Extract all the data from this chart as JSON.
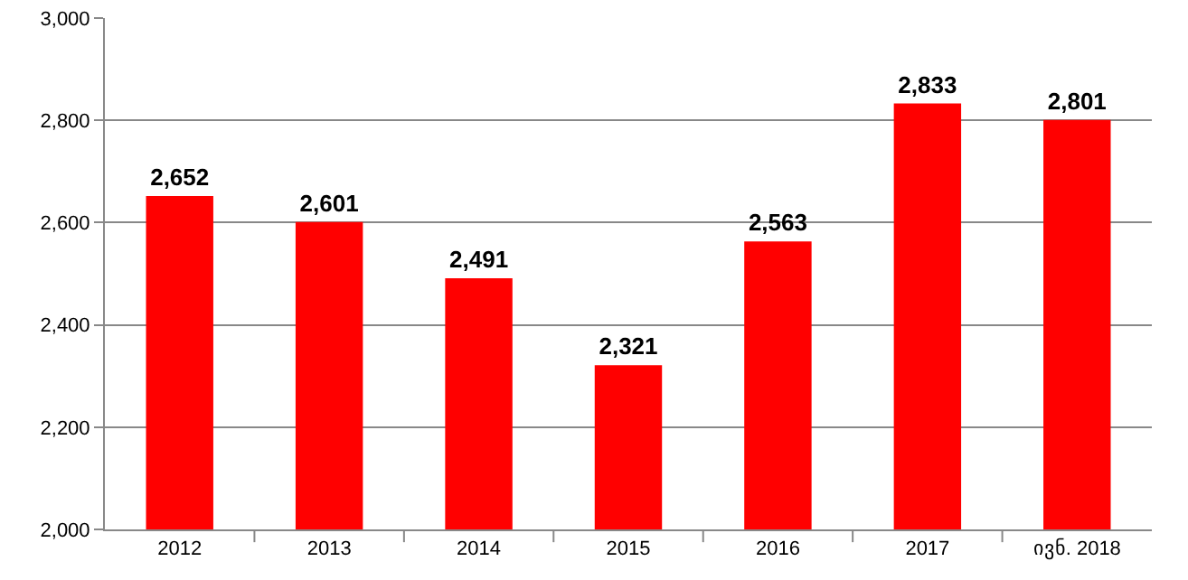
{
  "chart_data": {
    "type": "bar",
    "categories": [
      "2012",
      "2013",
      "2014",
      "2015",
      "2016",
      "2017",
      "ივნ. 2018"
    ],
    "values": [
      2652,
      2601,
      2491,
      2321,
      2563,
      2833,
      2801
    ],
    "value_labels": [
      "2,652",
      "2,601",
      "2,491",
      "2,321",
      "2,563",
      "2,833",
      "2,801"
    ],
    "color": "#ff0000",
    "ylim": [
      2000,
      3000
    ],
    "yticks": [
      {
        "value": 2000,
        "label": "2,000"
      },
      {
        "value": 2200,
        "label": "2,200"
      },
      {
        "value": 2400,
        "label": "2,400"
      },
      {
        "value": 2600,
        "label": "2,600"
      },
      {
        "value": 2800,
        "label": "2,800"
      },
      {
        "value": 3000,
        "label": "3,000"
      }
    ],
    "grid": "y",
    "legend": false
  }
}
